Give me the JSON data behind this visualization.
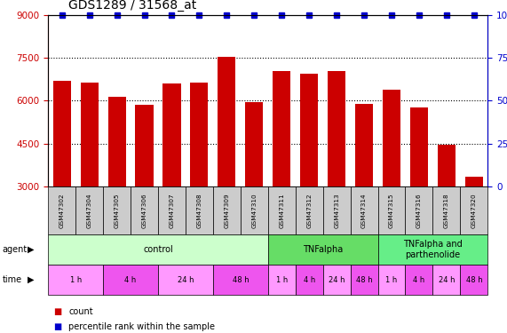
{
  "title": "GDS1289 / 31568_at",
  "samples": [
    "GSM47302",
    "GSM47304",
    "GSM47305",
    "GSM47306",
    "GSM47307",
    "GSM47308",
    "GSM47309",
    "GSM47310",
    "GSM47311",
    "GSM47312",
    "GSM47313",
    "GSM47314",
    "GSM47315",
    "GSM47316",
    "GSM47318",
    "GSM47320"
  ],
  "counts": [
    6700,
    6650,
    6150,
    5850,
    6600,
    6650,
    7550,
    5950,
    7050,
    6950,
    7050,
    5900,
    6400,
    5750,
    4450,
    3350
  ],
  "bar_color": "#cc0000",
  "dot_color": "#0000cc",
  "ylim_left": [
    3000,
    9000
  ],
  "ylim_right": [
    0,
    100
  ],
  "yticks_left": [
    3000,
    4500,
    6000,
    7500,
    9000
  ],
  "yticks_right": [
    0,
    25,
    50,
    75,
    100
  ],
  "agent_groups": [
    {
      "label": "control",
      "start": 0,
      "end": 8,
      "color": "#ccffcc"
    },
    {
      "label": "TNFalpha",
      "start": 8,
      "end": 12,
      "color": "#66dd66"
    },
    {
      "label": "TNFalpha and\nparthenolide",
      "start": 12,
      "end": 16,
      "color": "#66ee88"
    }
  ],
  "time_groups": [
    {
      "label": "1 h",
      "start": 0,
      "end": 2,
      "color": "#ff99ff"
    },
    {
      "label": "4 h",
      "start": 2,
      "end": 4,
      "color": "#ee55ee"
    },
    {
      "label": "24 h",
      "start": 4,
      "end": 6,
      "color": "#ff99ff"
    },
    {
      "label": "48 h",
      "start": 6,
      "end": 8,
      "color": "#ee55ee"
    },
    {
      "label": "1 h",
      "start": 8,
      "end": 9,
      "color": "#ff99ff"
    },
    {
      "label": "4 h",
      "start": 9,
      "end": 10,
      "color": "#ee55ee"
    },
    {
      "label": "24 h",
      "start": 10,
      "end": 11,
      "color": "#ff99ff"
    },
    {
      "label": "48 h",
      "start": 11,
      "end": 12,
      "color": "#ee55ee"
    },
    {
      "label": "1 h",
      "start": 12,
      "end": 13,
      "color": "#ff99ff"
    },
    {
      "label": "4 h",
      "start": 13,
      "end": 14,
      "color": "#ee55ee"
    },
    {
      "label": "24 h",
      "start": 14,
      "end": 15,
      "color": "#ff99ff"
    },
    {
      "label": "48 h",
      "start": 15,
      "end": 16,
      "color": "#ee55ee"
    }
  ],
  "background_color": "#ffffff",
  "title_fontsize": 10,
  "tick_label_color_left": "#cc0000",
  "tick_label_color_right": "#0000cc",
  "sample_box_color": "#cccccc",
  "legend_square_size": 7
}
